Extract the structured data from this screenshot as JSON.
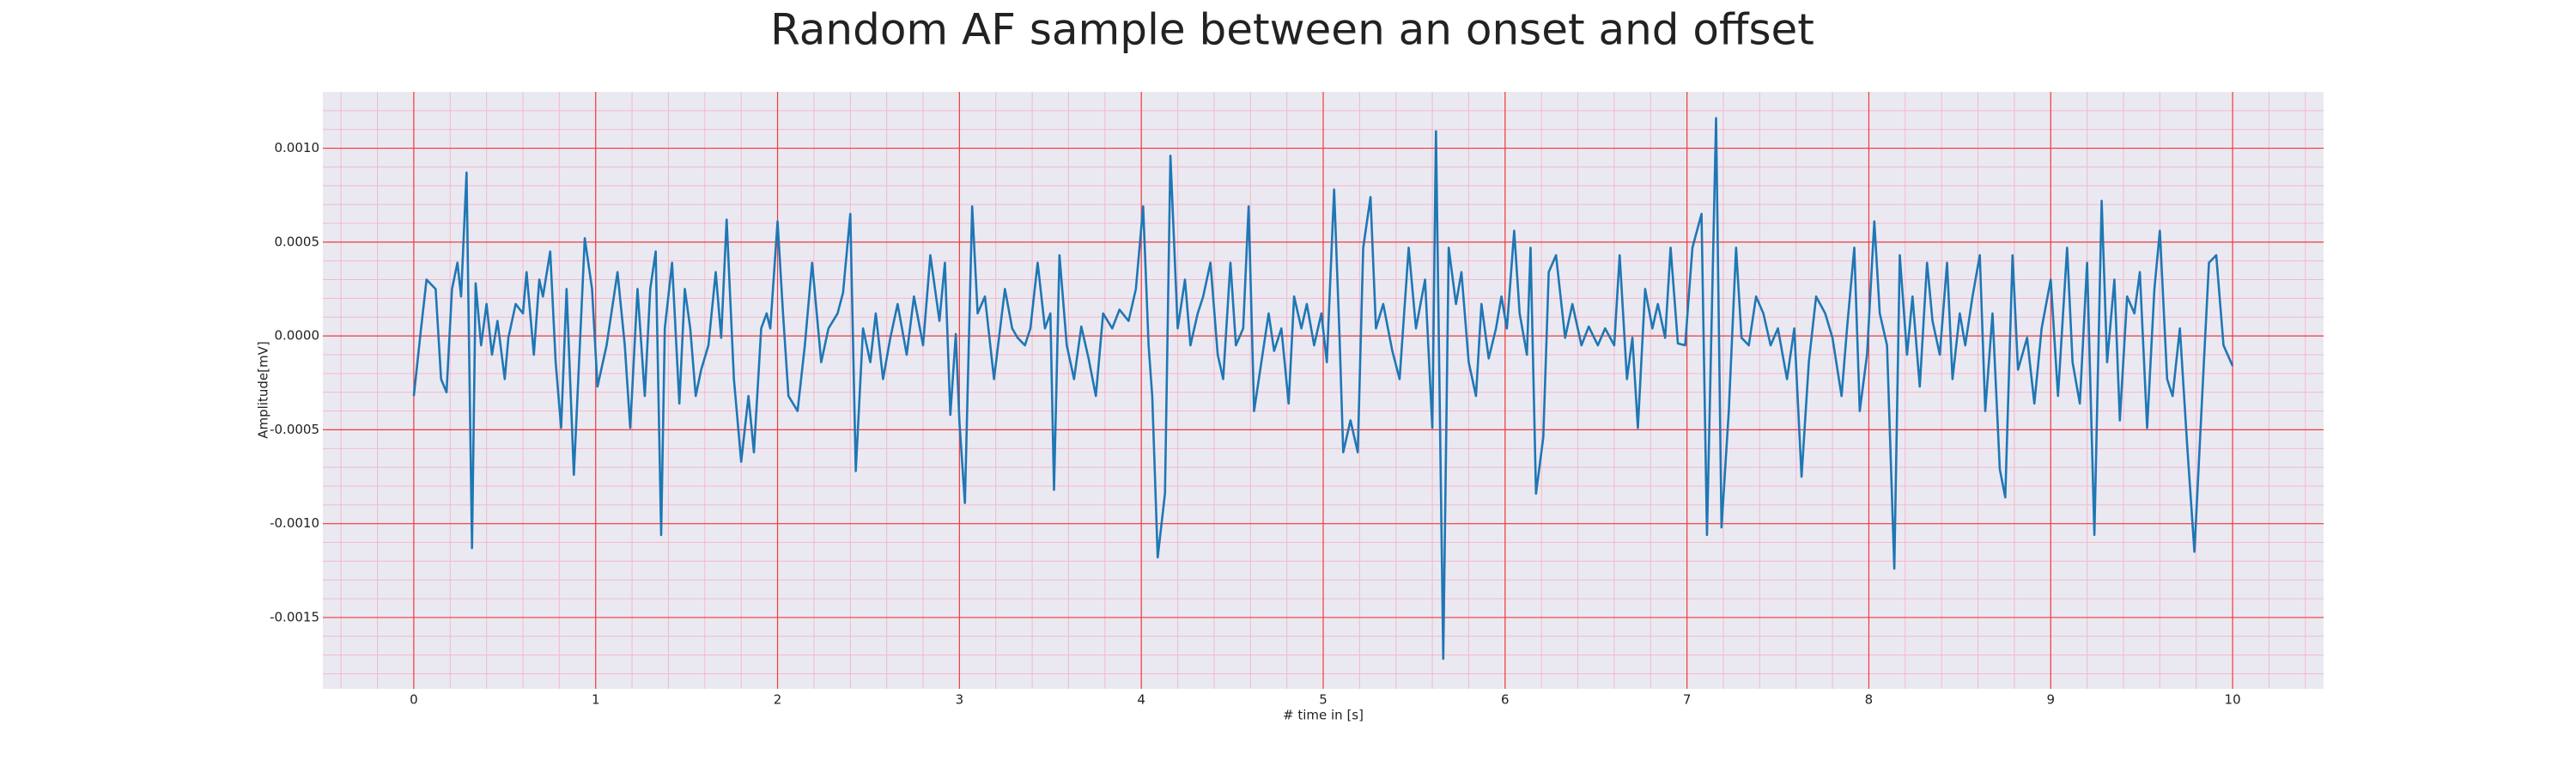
{
  "chart_data": {
    "type": "line",
    "title": "Random AF sample between an onset and offset",
    "xlabel": "# time in [s]",
    "ylabel": "Amplitude[mV]",
    "color": "#1f77b4",
    "grid": true,
    "minor_grid": true,
    "xlim": [
      -0.5,
      10.5
    ],
    "ylim": [
      -0.00188,
      0.0013
    ],
    "xticks": [
      0,
      1,
      2,
      3,
      4,
      5,
      6,
      7,
      8,
      9,
      10
    ],
    "yticks": [
      {
        "value": 0.001,
        "label": "0.0010"
      },
      {
        "value": 0.0005,
        "label": "0.0005"
      },
      {
        "value": 0,
        "label": "0.0000"
      },
      {
        "value": -0.0005,
        "label": "-0.0005"
      },
      {
        "value": -0.001,
        "label": "-0.0010"
      },
      {
        "value": -0.0015,
        "label": "-0.0015"
      }
    ],
    "x": [
      0,
      0.04,
      0.07,
      0.12,
      0.15,
      0.18,
      0.21,
      0.24,
      0.26,
      0.29,
      0.32,
      0.34,
      0.37,
      0.4,
      0.43,
      0.46,
      0.5,
      0.52,
      0.56,
      0.6,
      0.62,
      0.66,
      0.69,
      0.71,
      0.75,
      0.78,
      0.81,
      0.84,
      0.88,
      0.9,
      0.94,
      0.98,
      1.01,
      1.06,
      1.12,
      1.16,
      1.19,
      1.23,
      1.27,
      1.3,
      1.33,
      1.36,
      1.38,
      1.42,
      1.46,
      1.49,
      1.52,
      1.55,
      1.58,
      1.62,
      1.66,
      1.69,
      1.72,
      1.76,
      1.8,
      1.84,
      1.87,
      1.91,
      1.94,
      1.96,
      2.0,
      2.03,
      2.06,
      2.11,
      2.15,
      2.19,
      2.24,
      2.28,
      2.33,
      2.36,
      2.4,
      2.43,
      2.47,
      2.51,
      2.54,
      2.58,
      2.62,
      2.66,
      2.71,
      2.75,
      2.8,
      2.84,
      2.89,
      2.92,
      2.95,
      2.98,
      3.0,
      3.03,
      3.07,
      3.1,
      3.14,
      3.19,
      3.25,
      3.29,
      3.32,
      3.36,
      3.39,
      3.43,
      3.47,
      3.5,
      3.52,
      3.55,
      3.59,
      3.63,
      3.67,
      3.71,
      3.75,
      3.79,
      3.84,
      3.88,
      3.93,
      3.97,
      4.01,
      4.04,
      4.06,
      4.09,
      4.13,
      4.16,
      4.2,
      4.24,
      4.27,
      4.31,
      4.34,
      4.38,
      4.42,
      4.45,
      4.49,
      4.52,
      4.56,
      4.59,
      4.62,
      4.66,
      4.7,
      4.73,
      4.77,
      4.81,
      4.84,
      4.88,
      4.91,
      4.95,
      4.99,
      5.02,
      5.06,
      5.09,
      5.11,
      5.15,
      5.19,
      5.22,
      5.26,
      5.29,
      5.33,
      5.38,
      5.42,
      5.47,
      5.51,
      5.56,
      5.6,
      5.62,
      5.66,
      5.69,
      5.73,
      5.76,
      5.8,
      5.84,
      5.87,
      5.91,
      5.95,
      5.98,
      6.01,
      6.05,
      6.08,
      6.12,
      6.14,
      6.17,
      6.21,
      6.24,
      6.28,
      6.33,
      6.37,
      6.42,
      6.46,
      6.51,
      6.55,
      6.6,
      6.63,
      6.67,
      6.7,
      6.73,
      6.77,
      6.81,
      6.84,
      6.88,
      6.91,
      6.95,
      6.99,
      7.03,
      7.08,
      7.11,
      7.16,
      7.19,
      7.23,
      7.27,
      7.3,
      7.34,
      7.38,
      7.42,
      7.46,
      7.5,
      7.55,
      7.59,
      7.63,
      7.67,
      7.71,
      7.76,
      7.8,
      7.85,
      7.88,
      7.92,
      7.95,
      7.99,
      8.03,
      8.06,
      8.1,
      8.14,
      8.17,
      8.21,
      8.24,
      8.28,
      8.32,
      8.35,
      8.39,
      8.43,
      8.46,
      8.5,
      8.53,
      8.57,
      8.61,
      8.64,
      8.68,
      8.72,
      8.75,
      8.79,
      8.82,
      8.87,
      8.91,
      8.95,
      9.0,
      9.04,
      9.09,
      9.12,
      9.16,
      9.2,
      9.24,
      9.28,
      9.31,
      9.35,
      9.38,
      9.42,
      9.46,
      9.49,
      9.53,
      9.57,
      9.6,
      9.64,
      9.67,
      9.71,
      9.75,
      9.79,
      9.84,
      9.87,
      9.91,
      9.95,
      10.0
    ],
    "values": [
      -0.00032,
      4e-05,
      0.0003,
      0.00025,
      -0.00023,
      -0.0003,
      0.00025,
      0.00039,
      0.00021,
      0.00087,
      -0.00113,
      0.00028,
      -5e-05,
      0.00017,
      -0.0001,
      8e-05,
      -0.00023,
      -1e-05,
      0.00017,
      0.00012,
      0.00034,
      -0.0001,
      0.0003,
      0.00021,
      0.00045,
      -0.00014,
      -0.00049,
      0.00025,
      -0.00074,
      -0.00032,
      0.00052,
      0.00025,
      -0.00027,
      -5e-05,
      0.00034,
      -5e-05,
      -0.00049,
      0.00025,
      -0.00032,
      0.00025,
      0.00045,
      -0.00106,
      4e-05,
      0.00039,
      -0.00036,
      0.00025,
      4e-05,
      -0.00032,
      -0.00018,
      -5e-05,
      0.00034,
      -1e-05,
      0.00062,
      -0.00023,
      -0.00067,
      -0.00032,
      -0.00062,
      4e-05,
      0.00012,
      4e-05,
      0.00061,
      0.00012,
      -0.00032,
      -0.0004,
      -5e-05,
      0.00039,
      -0.00014,
      4e-05,
      0.00012,
      0.00023,
      0.00065,
      -0.00072,
      4e-05,
      -0.00014,
      0.00012,
      -0.00023,
      -1e-05,
      0.00017,
      -0.0001,
      0.00021,
      -5e-05,
      0.00043,
      8e-05,
      0.00039,
      -0.00042,
      1e-05,
      -0.00046,
      -0.00089,
      0.00069,
      0.00012,
      0.00021,
      -0.00023,
      0.00025,
      4e-05,
      -1e-05,
      -5e-05,
      4e-05,
      0.00039,
      4e-05,
      0.00012,
      -0.00082,
      0.00043,
      -5e-05,
      -0.00023,
      5e-05,
      -0.00012,
      -0.00032,
      0.00012,
      4e-05,
      0.00014,
      8e-05,
      0.00025,
      0.00069,
      -5e-05,
      -0.00032,
      -0.00118,
      -0.00084,
      0.00096,
      4e-05,
      0.0003,
      -5e-05,
      0.00012,
      0.00021,
      0.00039,
      -0.0001,
      -0.00023,
      0.00039,
      -5e-05,
      4e-05,
      0.00069,
      -0.0004,
      -0.00014,
      0.00012,
      -8e-05,
      4e-05,
      -0.00036,
      0.00021,
      4e-05,
      0.00017,
      -5e-05,
      0.00012,
      -0.00014,
      0.00078,
      -1e-05,
      -0.00062,
      -0.00045,
      -0.00062,
      0.00047,
      0.00074,
      4e-05,
      0.00017,
      -8e-05,
      -0.00023,
      0.00047,
      4e-05,
      0.0003,
      -0.00049,
      0.00109,
      -0.00172,
      0.00047,
      0.00017,
      0.00034,
      -0.00014,
      -0.00032,
      0.00017,
      -0.00012,
      4e-05,
      0.00021,
      4e-05,
      0.00056,
      0.00012,
      -0.0001,
      0.00047,
      -0.00084,
      -0.00054,
      0.00034,
      0.00043,
      -1e-05,
      0.00017,
      -5e-05,
      5e-05,
      -5e-05,
      4e-05,
      -5e-05,
      0.00043,
      -0.00023,
      -1e-05,
      -0.00049,
      0.00025,
      4e-05,
      0.00017,
      -1e-05,
      0.00047,
      -4e-05,
      -5e-05,
      0.00047,
      0.00065,
      -0.00106,
      0.00116,
      -0.00102,
      -0.0004,
      0.00047,
      -1e-05,
      -5e-05,
      0.00021,
      0.00012,
      -5e-05,
      4e-05,
      -0.00023,
      4e-05,
      -0.00075,
      -0.00014,
      0.00021,
      0.00012,
      -1e-05,
      -0.00032,
      4e-05,
      0.00047,
      -0.0004,
      -0.0001,
      0.00061,
      0.00012,
      -5e-05,
      -0.00124,
      0.00043,
      -0.0001,
      0.00021,
      -0.00027,
      0.00039,
      8e-05,
      -0.0001,
      0.00039,
      -0.00023,
      0.00012,
      -5e-05,
      0.00021,
      0.00043,
      -0.0004,
      0.00012,
      -0.00071,
      -0.00086,
      0.00043,
      -0.00018,
      -1e-05,
      -0.00036,
      4e-05,
      0.0003,
      -0.00032,
      0.00047,
      -0.00014,
      -0.00036,
      0.00039,
      -0.00106,
      0.00072,
      -0.00014,
      0.0003,
      -0.00045,
      0.00021,
      0.00012,
      0.00034,
      -0.00049,
      0.00025,
      0.00056,
      -0.00023,
      -0.00032,
      4e-05,
      -0.00058,
      -0.00115,
      -0.00018,
      0.00039,
      0.00043,
      -5e-05,
      -0.00016
    ]
  }
}
